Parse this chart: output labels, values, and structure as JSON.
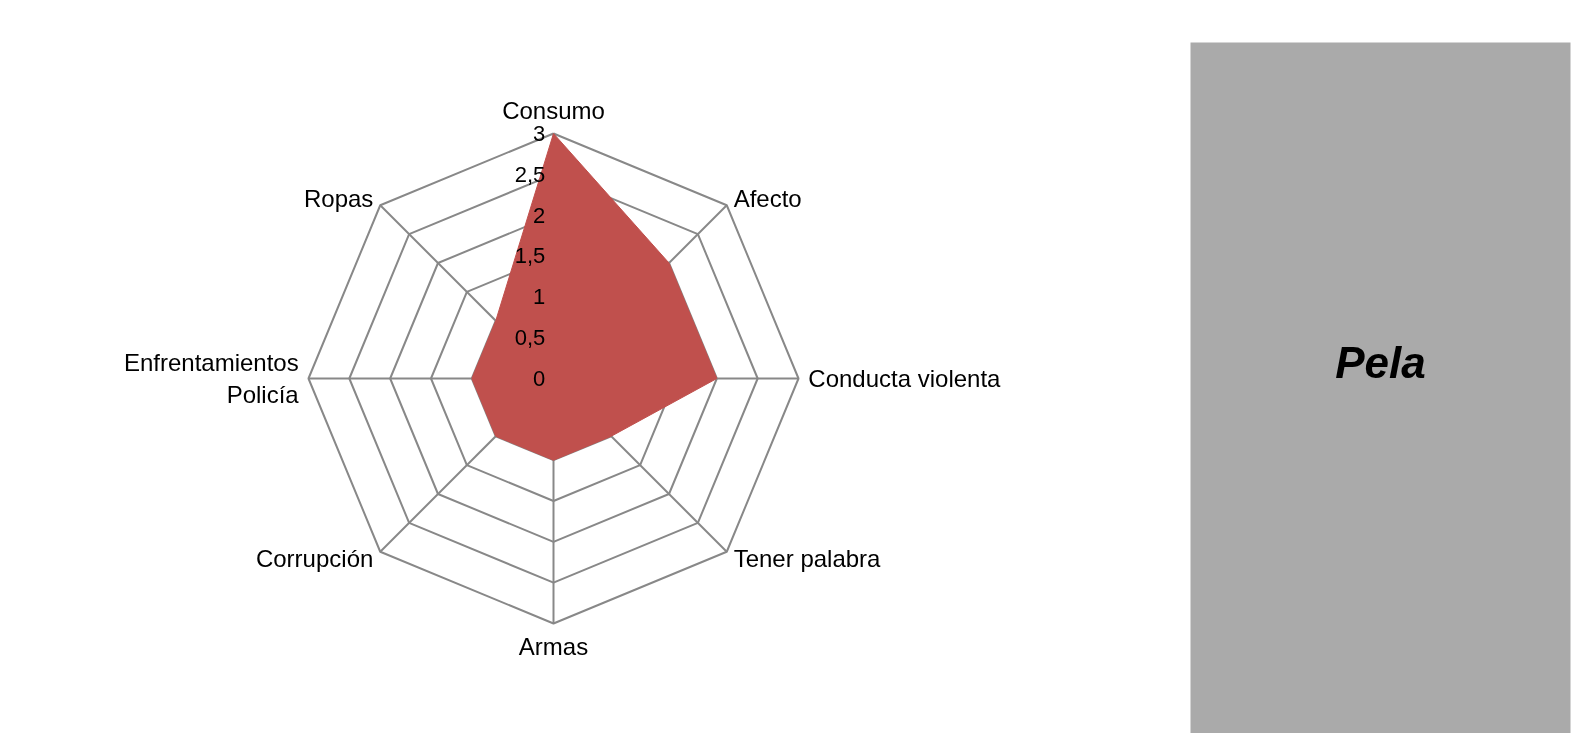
{
  "chart_data": {
    "type": "radar",
    "categories": [
      "Consumo",
      "Afecto",
      "Conducta violenta",
      "Tener palabra",
      "Armas",
      "Corrupción",
      "Enfrentamientos\nPolicía",
      "Ropas"
    ],
    "series": [
      {
        "color": "#c0504d",
        "values": [
          3,
          2,
          2,
          1,
          1,
          1,
          1,
          1
        ]
      }
    ],
    "ylim": [
      0,
      3
    ],
    "yticks": [
      0,
      {
        "value": 0.5,
        "label": "0,5"
      },
      1,
      {
        "value": 1.5,
        "label": "1,5"
      },
      2,
      {
        "value": 2.5,
        "label": "2,5"
      },
      3
    ],
    "grid": true,
    "annotations": [
      "Pela"
    ]
  }
}
